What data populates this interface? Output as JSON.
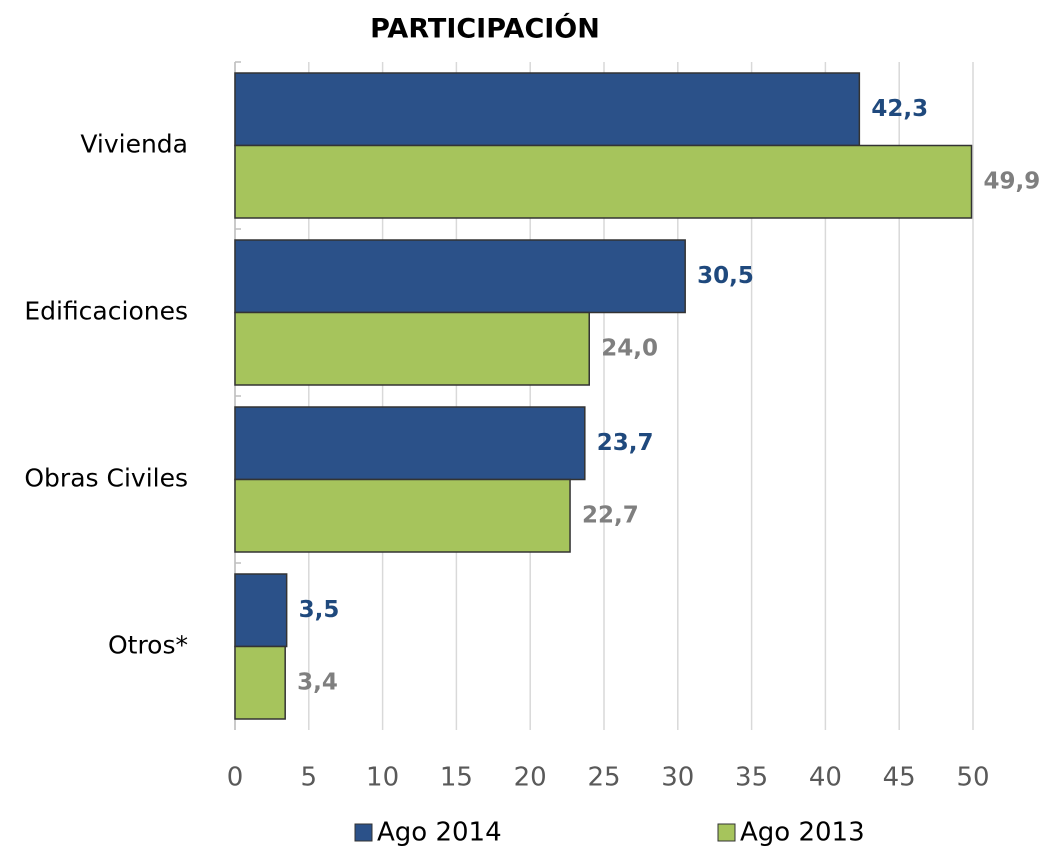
{
  "chart_data": {
    "type": "bar",
    "orientation": "horizontal",
    "title": "PARTICIPACIÓN",
    "categories": [
      "Vivienda",
      "Edificaciones",
      "Obras Civiles",
      "Otros*"
    ],
    "series": [
      {
        "name": "Ago 2014",
        "color": "#2b5189",
        "label_color": "#1f497d",
        "values": [
          42.3,
          30.5,
          23.7,
          3.5
        ],
        "value_labels": [
          "42,3",
          "30,5",
          "23,7",
          "3,5"
        ]
      },
      {
        "name": "Ago 2013",
        "color": "#a6c45c",
        "label_color": "#7f7f7f",
        "values": [
          49.9,
          24.0,
          22.7,
          3.4
        ],
        "value_labels": [
          "49,9",
          "24,0",
          "22,7",
          "3,4"
        ]
      }
    ],
    "xlim": [
      0,
      50
    ],
    "xticks": [
      0,
      5,
      10,
      15,
      20,
      25,
      30,
      35,
      40,
      45,
      50
    ],
    "grid": true,
    "legend": "bottom"
  }
}
